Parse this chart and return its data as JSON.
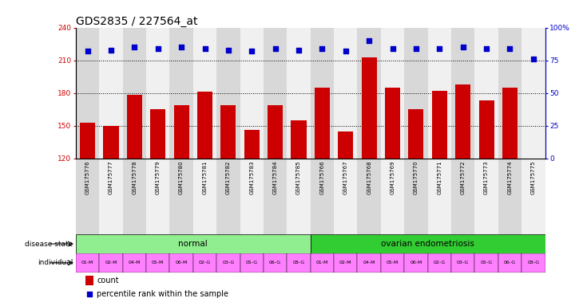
{
  "title": "GDS2835 / 227564_at",
  "samples": [
    "GSM175776",
    "GSM175777",
    "GSM175778",
    "GSM175779",
    "GSM175780",
    "GSM175781",
    "GSM175782",
    "GSM175783",
    "GSM175784",
    "GSM175785",
    "GSM175766",
    "GSM175767",
    "GSM175768",
    "GSM175769",
    "GSM175770",
    "GSM175771",
    "GSM175772",
    "GSM175773",
    "GSM175774",
    "GSM175775"
  ],
  "counts": [
    153,
    150,
    178,
    165,
    169,
    181,
    169,
    146,
    169,
    155,
    185,
    145,
    213,
    185,
    165,
    182,
    188,
    173,
    185,
    120
  ],
  "percentiles": [
    82,
    83,
    85,
    84,
    85,
    84,
    83,
    82,
    84,
    83,
    84,
    82,
    90,
    84,
    84,
    84,
    85,
    84,
    84,
    76
  ],
  "individuals_normal": [
    "01-M",
    "02-M",
    "04-M",
    "05-M",
    "06-M",
    "02-G",
    "03-G",
    "05-G",
    "06-G",
    "08-G"
  ],
  "individuals_endo": [
    "01-M",
    "02-M",
    "04-M",
    "05-M",
    "06-M",
    "02-G",
    "03-G",
    "05-G",
    "06-G",
    "08-G"
  ],
  "group1_label": "normal",
  "group2_label": "ovarian endometriosis",
  "group1_color": "#90EE90",
  "group2_color": "#32CD32",
  "individual_color_light": "#FF80FF",
  "individual_color_dark": "#CC44CC",
  "bar_color": "#CC0000",
  "dot_color": "#0000CC",
  "ylim_left": [
    120,
    240
  ],
  "ylim_right": [
    0,
    100
  ],
  "yticks_left": [
    120,
    150,
    180,
    210,
    240
  ],
  "yticks_right": [
    0,
    25,
    50,
    75,
    100
  ],
  "ylabel_left_color": "#CC0000",
  "ylabel_right_color": "#0000CC",
  "title_fontsize": 10,
  "tick_fontsize": 6.5,
  "label_fontsize": 7,
  "bg_color": "#ffffff",
  "col_bg_even": "#D8D8D8",
  "col_bg_odd": "#F0F0F0",
  "grid_color": "#000000"
}
